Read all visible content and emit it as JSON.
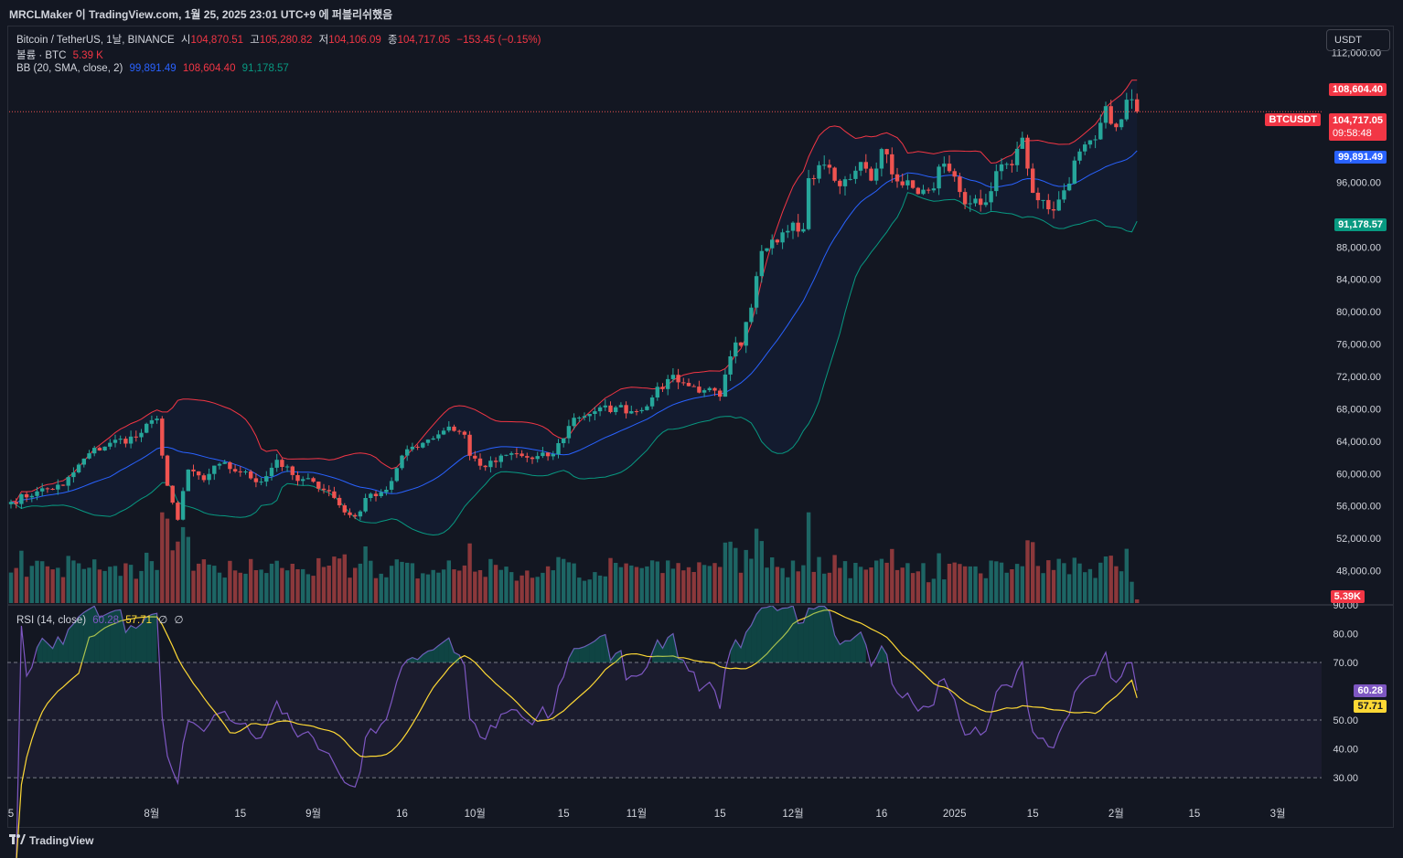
{
  "header": {
    "publish_line": "MRCLMaker 이 TradingView.com, 1월 25, 2025 23:01 UTC+9 에 퍼블리쉬했음"
  },
  "legend": {
    "symbol": "Bitcoin / TetherUS, 1날, BINANCE",
    "o_label": "시",
    "o": "104,870.51",
    "h_label": "고",
    "h": "105,280.82",
    "l_label": "저",
    "l": "104,106.09",
    "c_label": "종",
    "c": "104,717.05",
    "change": "−153.45 (−0.15%)",
    "volume_label": "볼륨 · BTC",
    "volume": "5.39 K",
    "bb_label": "BB (20, SMA, close, 2)",
    "bb_mid": "99,891.49",
    "bb_upper": "108,604.40",
    "bb_lower": "91,178.57",
    "rsi_label": "RSI (14, close)",
    "rsi": "60.28",
    "rsi_ma": "57.71",
    "rsi_na1": "∅",
    "rsi_na2": "∅"
  },
  "currency_button": "USDT",
  "price_labels": {
    "bb_upper": "108,604.40",
    "symbol_tag": "BTCUSDT",
    "last": "104,717.05",
    "countdown": "09:58:48",
    "bb_mid": "99,891.49",
    "bb_lower": "91,178.57",
    "volume": "5.39K",
    "rsi": "60.28",
    "rsi_ma": "57.71"
  },
  "colors": {
    "bg": "#131722",
    "up": "#26a69a",
    "down": "#ef5350",
    "bb_mid": "#2962ff",
    "bb_upper": "#f23645",
    "bb_lower": "#089981",
    "rsi": "#7e57c2",
    "rsi_ma": "#fdd835"
  },
  "footer": {
    "brand": "TradingView",
    "logo": "tradingview-logo-icon"
  },
  "chart_data": [
    {
      "type": "candlestick",
      "title": "Bitcoin / TetherUS, 1날, BINANCE",
      "y_ticks": [
        "112,000.00",
        "96,000.00",
        "88,000.00",
        "84,000.00",
        "80,000.00",
        "76,000.00",
        "72,000.00",
        "68,000.00",
        "64,000.00",
        "60,000.00",
        "56,000.00",
        "52,000.00",
        "48,000.00"
      ],
      "y_tick_values": [
        112000,
        96000,
        88000,
        84000,
        80000,
        76000,
        72000,
        68000,
        64000,
        60000,
        56000,
        52000,
        48000
      ],
      "ylim": [
        44000,
        114000
      ],
      "x_ticks": [
        "5",
        "8월",
        "15",
        "9월",
        "16",
        "10월",
        "15",
        "11월",
        "15",
        "12월",
        "16",
        "2025",
        "15",
        "2월",
        "15",
        "3월"
      ],
      "x_tick_days": [
        0,
        27,
        44,
        58,
        75,
        89,
        106,
        120,
        136,
        150,
        167,
        181,
        196,
        212,
        227,
        243
      ],
      "first_date": "2024-07-05",
      "last_date": "2025-01-25",
      "anchors": [
        [
          0,
          56500
        ],
        [
          5,
          57800
        ],
        [
          10,
          58500
        ],
        [
          15,
          62500
        ],
        [
          19,
          63800
        ],
        [
          24,
          64500
        ],
        [
          28,
          66800
        ],
        [
          30,
          58500
        ],
        [
          32,
          54300
        ],
        [
          34,
          60500
        ],
        [
          37,
          59200
        ],
        [
          40,
          61200
        ],
        [
          44,
          60200
        ],
        [
          48,
          59000
        ],
        [
          51,
          61700
        ],
        [
          55,
          59100
        ],
        [
          58,
          59000
        ],
        [
          61,
          57800
        ],
        [
          64,
          55200
        ],
        [
          66,
          54700
        ],
        [
          69,
          57500
        ],
        [
          72,
          58000
        ],
        [
          76,
          63000
        ],
        [
          80,
          64200
        ],
        [
          84,
          65800
        ],
        [
          87,
          64800
        ],
        [
          88,
          62200
        ],
        [
          91,
          60800
        ],
        [
          96,
          62500
        ],
        [
          100,
          61800
        ],
        [
          104,
          62400
        ],
        [
          108,
          66900
        ],
        [
          112,
          67700
        ],
        [
          116,
          68200
        ],
        [
          120,
          67700
        ],
        [
          123,
          69400
        ],
        [
          127,
          72200
        ],
        [
          130,
          70800
        ],
        [
          133,
          70300
        ],
        [
          136,
          69500
        ],
        [
          139,
          76200
        ],
        [
          140,
          75800
        ],
        [
          142,
          80500
        ],
        [
          144,
          87500
        ],
        [
          146,
          88900
        ],
        [
          148,
          89800
        ],
        [
          150,
          91000
        ],
        [
          152,
          90200
        ],
        [
          153,
          96500
        ],
        [
          155,
          98100
        ],
        [
          157,
          97800
        ],
        [
          159,
          95500
        ],
        [
          161,
          96400
        ],
        [
          163,
          98500
        ],
        [
          165,
          96200
        ],
        [
          167,
          100100
        ],
        [
          170,
          96100
        ],
        [
          173,
          95300
        ],
        [
          176,
          95000
        ],
        [
          179,
          98300
        ],
        [
          182,
          94800
        ],
        [
          184,
          93400
        ],
        [
          186,
          93200
        ],
        [
          188,
          94900
        ],
        [
          190,
          98200
        ],
        [
          192,
          98100
        ],
        [
          194,
          101500
        ],
        [
          196,
          94700
        ],
        [
          198,
          93800
        ],
        [
          200,
          92500
        ],
        [
          202,
          95000
        ],
        [
          205,
          99800
        ],
        [
          208,
          101300
        ],
        [
          210,
          105400
        ],
        [
          212,
          102800
        ],
        [
          214,
          106200
        ],
        [
          216,
          104700
        ]
      ],
      "last_close": 104717.05,
      "bb_last": {
        "mid": 99891.49,
        "upper": 108604.4,
        "lower": 91178.57
      }
    },
    {
      "type": "bar",
      "title": "볼륨 · BTC",
      "last_value": "5.39K"
    },
    {
      "type": "line",
      "title": "RSI (14, close)",
      "y_ticks": [
        "90.00",
        "80.00",
        "70.00",
        "50.00",
        "40.00",
        "30.00"
      ],
      "y_tick_values": [
        90,
        80,
        70,
        50,
        40,
        30
      ],
      "ylim": [
        24,
        90
      ],
      "bands": [
        30,
        50,
        70
      ],
      "series": [
        {
          "name": "RSI",
          "last": 60.28
        },
        {
          "name": "RSI-based MA",
          "last": 57.71
        }
      ]
    }
  ]
}
